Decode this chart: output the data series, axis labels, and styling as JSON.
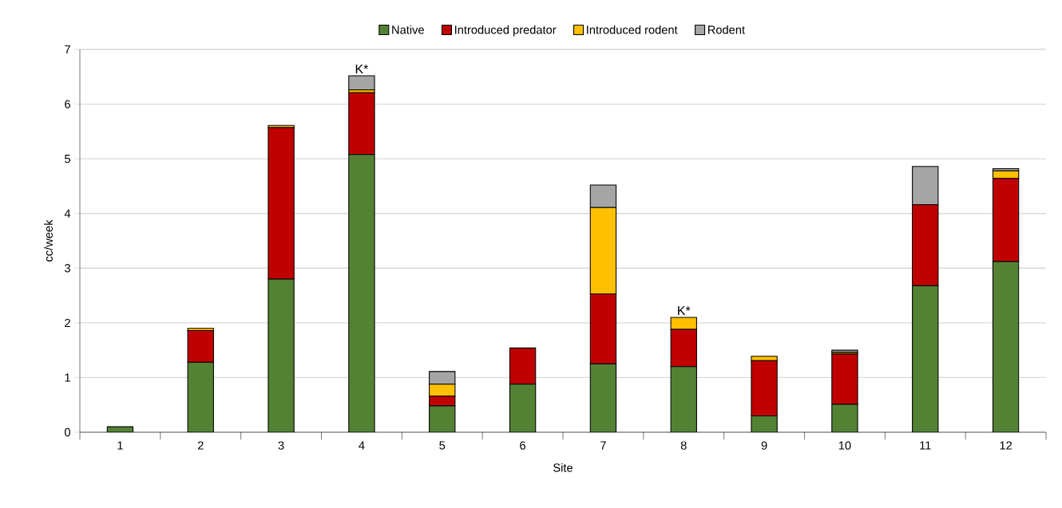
{
  "chart_data": {
    "type": "bar",
    "stacked": true,
    "xlabel": "Site",
    "ylabel": "cc/week",
    "categories": [
      "1",
      "2",
      "3",
      "4",
      "5",
      "6",
      "7",
      "8",
      "9",
      "10",
      "11",
      "12"
    ],
    "series": [
      {
        "name": "Native",
        "color": "#548235",
        "values": [
          0.1,
          1.28,
          2.8,
          5.08,
          0.48,
          0.88,
          1.25,
          1.2,
          0.3,
          0.51,
          2.68,
          3.12
        ]
      },
      {
        "name": "Introduced predator",
        "color": "#c00000",
        "values": [
          0,
          0.58,
          2.77,
          1.13,
          0.18,
          0.66,
          1.28,
          0.68,
          1.01,
          0.92,
          1.48,
          1.52
        ]
      },
      {
        "name": "Introduced rodent",
        "color": "#ffc000",
        "values": [
          0,
          0.04,
          0.04,
          0.05,
          0.22,
          0,
          1.58,
          0.22,
          0.08,
          0.03,
          0,
          0.14
        ]
      },
      {
        "name": "Rodent",
        "color": "#a5a5a5",
        "values": [
          0,
          0,
          0,
          0.26,
          0.23,
          0,
          0.41,
          0,
          0,
          0.04,
          0.7,
          0.04
        ]
      }
    ],
    "ylim": [
      0,
      7
    ],
    "yticks": [
      0,
      1,
      2,
      3,
      4,
      5,
      6,
      7
    ],
    "grid": "y",
    "legend": "top",
    "annotations": [
      {
        "text": "K*",
        "x": "4",
        "y": 6.52
      },
      {
        "text": "K*",
        "x": "8",
        "y": 2.1
      }
    ]
  }
}
